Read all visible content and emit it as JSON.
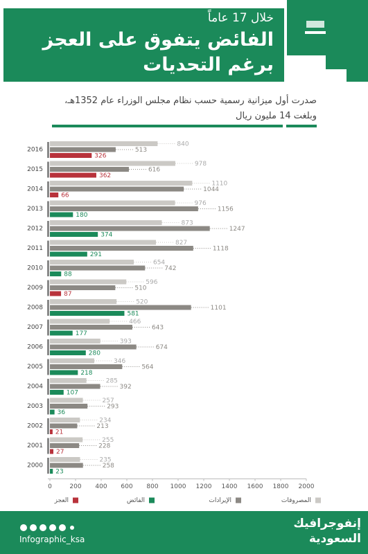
{
  "header": {
    "kicker": "خلال 17 عاماً",
    "title_line1": "الفائض يتفوق على العجز",
    "title_line2": "برغم التحديات",
    "subtitle_line1": "صدرت أول ميزانية رسمية حسب نظام مجلس الوزراء عام 1352هـ،",
    "subtitle_line2": "وبلغت 14 مليون ريال"
  },
  "chart_data": {
    "type": "bar",
    "categories": [
      "2016",
      "2015",
      "2014",
      "2013",
      "2012",
      "2011",
      "2010",
      "2009",
      "2008",
      "2007",
      "2006",
      "2005",
      "2004",
      "2003",
      "2002",
      "2001",
      "2000"
    ],
    "series": [
      {
        "name": "المصروفات",
        "color": "#cbc9c5",
        "values": [
          840,
          978,
          1110,
          976,
          873,
          827,
          654,
          596,
          520,
          466,
          393,
          346,
          285,
          257,
          234,
          255,
          235
        ]
      },
      {
        "name": "الإيرادات",
        "color": "#8c8984",
        "values": [
          513,
          616,
          1044,
          1156,
          1247,
          1118,
          742,
          510,
          1101,
          643,
          674,
          564,
          392,
          293,
          213,
          228,
          258
        ]
      },
      {
        "name": "الفائض",
        "color": "#1b8a5a",
        "values": [
          null,
          null,
          null,
          180,
          374,
          291,
          88,
          null,
          581,
          177,
          280,
          218,
          107,
          36,
          null,
          null,
          23
        ]
      },
      {
        "name": "العجز",
        "color": "#b8323b",
        "values": [
          326,
          362,
          66,
          null,
          null,
          null,
          null,
          87,
          null,
          null,
          null,
          null,
          null,
          null,
          21,
          27,
          null
        ]
      }
    ],
    "xlim": [
      0,
      2000
    ],
    "xticks": [
      0,
      200,
      400,
      600,
      800,
      1000,
      1200,
      1400,
      1600,
      1800,
      2000
    ]
  },
  "footer": {
    "handle": "Infographic_ksa",
    "logo_line1": "إنفوجرافيك",
    "logo_line2": "السعودية"
  }
}
